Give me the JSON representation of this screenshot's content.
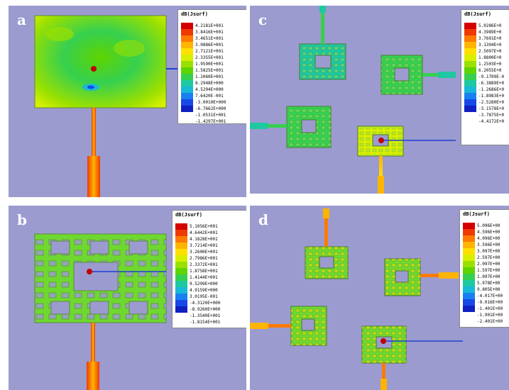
{
  "colors": [
    "#d40000",
    "#ee3a00",
    "#ff7a00",
    "#ffb400",
    "#ffe000",
    "#d8f000",
    "#9ae000",
    "#5ed400",
    "#36d050",
    "#1ec8a0",
    "#18b8d8",
    "#1880f0",
    "#1848e8",
    "#1020c0"
  ],
  "panels": {
    "a": {
      "label": "a",
      "legend_title": "dB(Jsurf)",
      "ticks": [
        "4.2181E+001",
        "3.8416E+001",
        "3.4651E+001",
        "3.0886E+001",
        "2.7121E+001",
        "2.3355E+001",
        "1.9590E+001",
        "1.5825E+001",
        "1.2060E+001",
        "8.2948E+000",
        "4.5294E+000",
        "7.6420E-001",
        "-3.0010E+000",
        "-6.7662E+000",
        "-1.0531E+001",
        "-1.4297E+001"
      ]
    },
    "b": {
      "label": "b",
      "legend_title": "dB(Jsurf)",
      "ticks": [
        "5.1056E+001",
        "4.6442E+001",
        "4.1828E+001",
        "3.7214E+001",
        "3.2600E+001",
        "2.7986E+001",
        "2.3372E+001",
        "1.8758E+001",
        "1.4144E+001",
        "9.5299E+000",
        "4.9159E+000",
        "3.0195E-001",
        "-4.3120E+000",
        "-8.9260E+000",
        "-1.3540E+001",
        "-1.8154E+001"
      ]
    },
    "c": {
      "label": "c",
      "legend_title": "dB(Jsurf)",
      "ticks": [
        "5.0286E+0",
        "4.3989E+0",
        "3.7691E+0",
        "3.1394E+0",
        "2.5097E+0",
        "1.8800E+0",
        "1.2503E+0",
        "6.2055E+0",
        "-9.1709E-0",
        "-6.3889E+0",
        "-1.2686E+0",
        "-1.8983E+0",
        "-2.5280E+0",
        "-3.1578E+0",
        "-3.7875E+0",
        "-4.4172E+0"
      ]
    },
    "d": {
      "label": "d",
      "legend_title": "dB(Jsurf)",
      "ticks": [
        "5.096E+00",
        "4.596E+00",
        "4.096E+00",
        "3.596E+00",
        "3.097E+00",
        "2.597E+00",
        "2.097E+00",
        "1.597E+00",
        "1.097E+00",
        "5.978E+00",
        "9.805E+00",
        "-4.017E+00",
        "-9.016E+00",
        "-1.401E+00",
        "-1.901E+00",
        "-2.401E+00"
      ]
    }
  }
}
